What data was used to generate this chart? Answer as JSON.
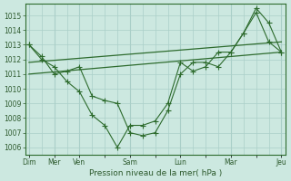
{
  "background_color": "#cce8e0",
  "grid_color": "#aacfc8",
  "line_color": "#2d6b2d",
  "xlabel": "Pression niveau de la mer( hPa )",
  "ylim": [
    1005.5,
    1015.8
  ],
  "yticks": [
    1006,
    1007,
    1008,
    1009,
    1010,
    1011,
    1012,
    1013,
    1014,
    1015
  ],
  "xlim": [
    -0.3,
    20.3
  ],
  "x_tick_positions": [
    0,
    2,
    4,
    6,
    8,
    10,
    12,
    14,
    16,
    18,
    20
  ],
  "x_day_positions": [
    0,
    2,
    4,
    8,
    12,
    16,
    20
  ],
  "x_day_labels": [
    "Dim",
    "Mer",
    "Ven",
    "Sam",
    "Lun",
    "Mar",
    "Jeu"
  ],
  "line1_x": [
    0,
    1,
    2,
    3,
    4,
    5,
    6,
    7,
    8,
    9,
    10,
    11,
    12,
    13,
    14,
    15,
    16,
    17,
    18,
    19,
    20
  ],
  "line1_y": [
    1013.0,
    1012.2,
    1011.0,
    1011.2,
    1011.5,
    1009.5,
    1009.2,
    1009.0,
    1007.0,
    1006.8,
    1007.0,
    1008.5,
    1011.0,
    1011.8,
    1011.8,
    1011.5,
    1012.5,
    1013.8,
    1015.2,
    1013.2,
    1012.5
  ],
  "line2_x": [
    0,
    1,
    2,
    3,
    4,
    5,
    6,
    7,
    8,
    9,
    10,
    11,
    12,
    13,
    14,
    15,
    16,
    17,
    18,
    19,
    20
  ],
  "line2_y": [
    1013.0,
    1012.0,
    1011.5,
    1010.5,
    1009.8,
    1008.2,
    1007.5,
    1006.0,
    1007.5,
    1007.5,
    1007.8,
    1009.0,
    1011.8,
    1011.2,
    1011.5,
    1012.5,
    1012.5,
    1013.8,
    1015.5,
    1014.5,
    1012.5
  ],
  "trend1_x": [
    0,
    20
  ],
  "trend1_y": [
    1011.8,
    1013.2
  ],
  "trend2_x": [
    0,
    20
  ],
  "trend2_y": [
    1011.0,
    1012.5
  ]
}
